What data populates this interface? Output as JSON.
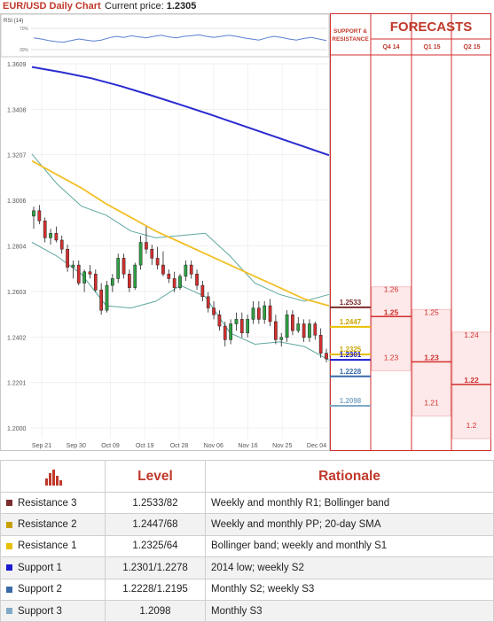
{
  "header": {
    "title": "EUR/USD Daily Chart",
    "price_label": "Current price:",
    "price_value": "1.2305"
  },
  "rsi_label": "RSI (14)",
  "rsi_ticks": [
    "70%",
    "30%"
  ],
  "forecasts": {
    "title": "FORECASTS",
    "sr_title": "SUPPORT &\nRESISTANCE",
    "quarters": [
      "Q4 14",
      "Q1 15",
      "Q2 15"
    ],
    "levels": [
      {
        "label": "1.2533",
        "value": 1.2533,
        "color": "#7b2c2c"
      },
      {
        "label": "1.2447",
        "value": 1.2447,
        "color": "#e8c000"
      },
      {
        "label": "1.2325",
        "value": 1.2325,
        "color": "#e8c000"
      },
      {
        "label": "1.2301",
        "value": 1.2301,
        "color": "#1a1ad0"
      },
      {
        "label": "1.2228",
        "value": 1.2228,
        "color": "#3a6aa8"
      },
      {
        "label": "1.2098",
        "value": 1.2098,
        "color": "#7fa9c7"
      }
    ],
    "q4": [
      {
        "label": "1.26",
        "value": 1.26,
        "bold": false
      },
      {
        "label": "1.25",
        "value": 1.25,
        "bold": true
      },
      {
        "label": "1.23",
        "value": 1.23,
        "bold": false
      }
    ],
    "q1": [
      {
        "label": "1.25",
        "value": 1.25,
        "bold": false
      },
      {
        "label": "1.23",
        "value": 1.23,
        "bold": true
      },
      {
        "label": "1.21",
        "value": 1.21,
        "bold": false
      }
    ],
    "q2": [
      {
        "label": "1.24",
        "value": 1.24,
        "bold": false
      },
      {
        "label": "1.22",
        "value": 1.22,
        "bold": true
      },
      {
        "label": "1.2",
        "value": 1.2,
        "bold": false
      }
    ]
  },
  "chart_data": {
    "type": "candlestick",
    "title": "EUR/USD Daily Chart",
    "y_ticks": [
      "1.3609",
      "1.3408",
      "1.3207",
      "1.3006",
      "1.2804",
      "1.2603",
      "1.2402",
      "1.2201",
      "1.2000"
    ],
    "ylim": [
      1.19,
      1.367
    ],
    "x_ticks": [
      "Sep 21",
      "Sep 30",
      "Oct 09",
      "Oct 19",
      "Oct 28",
      "Nov 06",
      "Nov 16",
      "Nov 25",
      "Dec 04"
    ],
    "candles": [
      [
        1.2936,
        1.2978,
        1.288,
        1.296
      ],
      [
        1.296,
        1.2985,
        1.29,
        1.2915
      ],
      [
        1.2915,
        1.293,
        1.282,
        1.284
      ],
      [
        1.284,
        1.288,
        1.281,
        1.286
      ],
      [
        1.286,
        1.289,
        1.282,
        1.283
      ],
      [
        1.283,
        1.285,
        1.277,
        1.279
      ],
      [
        1.279,
        1.281,
        1.269,
        1.271
      ],
      [
        1.271,
        1.274,
        1.266,
        1.272
      ],
      [
        1.272,
        1.274,
        1.263,
        1.264
      ],
      [
        1.264,
        1.27,
        1.26,
        1.269
      ],
      [
        1.269,
        1.272,
        1.266,
        1.268
      ],
      [
        1.268,
        1.27,
        1.26,
        1.261
      ],
      [
        1.261,
        1.264,
        1.25,
        1.252
      ],
      [
        1.252,
        1.265,
        1.251,
        1.263
      ],
      [
        1.263,
        1.268,
        1.26,
        1.266
      ],
      [
        1.266,
        1.277,
        1.264,
        1.275
      ],
      [
        1.275,
        1.277,
        1.266,
        1.268
      ],
      [
        1.268,
        1.27,
        1.26,
        1.262
      ],
      [
        1.262,
        1.273,
        1.261,
        1.272
      ],
      [
        1.272,
        1.285,
        1.27,
        1.282
      ],
      [
        1.282,
        1.289,
        1.277,
        1.279
      ],
      [
        1.279,
        1.281,
        1.272,
        1.275
      ],
      [
        1.275,
        1.28,
        1.27,
        1.272
      ],
      [
        1.272,
        1.278,
        1.267,
        1.268
      ],
      [
        1.268,
        1.27,
        1.264,
        1.266
      ],
      [
        1.266,
        1.269,
        1.26,
        1.262
      ],
      [
        1.262,
        1.268,
        1.261,
        1.267
      ],
      [
        1.267,
        1.274,
        1.265,
        1.272
      ],
      [
        1.272,
        1.274,
        1.266,
        1.268
      ],
      [
        1.268,
        1.27,
        1.261,
        1.263
      ],
      [
        1.263,
        1.265,
        1.256,
        1.258
      ],
      [
        1.258,
        1.26,
        1.251,
        1.253
      ],
      [
        1.253,
        1.256,
        1.248,
        1.25
      ],
      [
        1.25,
        1.252,
        1.243,
        1.245
      ],
      [
        1.245,
        1.247,
        1.236,
        1.239
      ],
      [
        1.239,
        1.248,
        1.237,
        1.246
      ],
      [
        1.246,
        1.251,
        1.243,
        1.248
      ],
      [
        1.248,
        1.251,
        1.24,
        1.242
      ],
      [
        1.242,
        1.25,
        1.24,
        1.248
      ],
      [
        1.248,
        1.256,
        1.246,
        1.253
      ],
      [
        1.253,
        1.256,
        1.246,
        1.248
      ],
      [
        1.248,
        1.256,
        1.246,
        1.254
      ],
      [
        1.254,
        1.257,
        1.245,
        1.247
      ],
      [
        1.247,
        1.25,
        1.237,
        1.239
      ],
      [
        1.239,
        1.242,
        1.236,
        1.24
      ],
      [
        1.24,
        1.252,
        1.238,
        1.25
      ],
      [
        1.25,
        1.252,
        1.241,
        1.243
      ],
      [
        1.243,
        1.249,
        1.242,
        1.246
      ],
      [
        1.246,
        1.248,
        1.238,
        1.24
      ],
      [
        1.24,
        1.248,
        1.238,
        1.246
      ],
      [
        1.246,
        1.247,
        1.239,
        1.241
      ],
      [
        1.241,
        1.244,
        1.231,
        1.233
      ],
      [
        1.233,
        1.235,
        1.229,
        1.2305
      ]
    ],
    "sma200": [
      1.3595,
      1.3572,
      1.3545,
      1.351,
      1.347,
      1.3428,
      1.3385,
      1.334,
      1.3295,
      1.325,
      1.3205
    ],
    "sma20": [
      1.318,
      1.312,
      1.306,
      1.299,
      1.293,
      1.287,
      1.282,
      1.277,
      1.272,
      1.267,
      1.262,
      1.257,
      1.254
    ],
    "bb_upper": [
      1.321,
      1.308,
      1.298,
      1.294,
      1.287,
      1.284,
      1.285,
      1.286,
      1.276,
      1.264,
      1.259,
      1.256,
      1.259
    ],
    "bb_lower": [
      1.282,
      1.276,
      1.268,
      1.254,
      1.253,
      1.256,
      1.263,
      1.258,
      1.242,
      1.237,
      1.238,
      1.236,
      1.23
    ],
    "rsi": [
      52,
      50,
      47,
      45,
      44,
      47,
      50,
      48,
      46,
      48,
      52,
      55,
      53,
      56,
      54,
      52,
      55,
      57,
      54,
      52,
      55,
      56,
      58,
      55,
      53,
      55,
      57,
      55,
      52,
      50,
      48,
      52,
      55,
      53,
      50,
      48,
      51,
      53,
      50,
      47
    ]
  },
  "table": {
    "headers": [
      "",
      "Level",
      "Rationale"
    ],
    "rows": [
      {
        "name": "Resistance 3",
        "level": "1.2533/82",
        "rationale": "Weekly and monthly R1; Bollinger band",
        "color": "#7b2c2c"
      },
      {
        "name": "Resistance 2",
        "level": "1.2447/68",
        "rationale": "Weekly and monthly PP; 20-day SMA",
        "color": "#c8a000"
      },
      {
        "name": "Resistance 1",
        "level": "1.2325/64",
        "rationale": "Bollinger band; weekly and monthly S1",
        "color": "#e8c000"
      },
      {
        "name": "Support 1",
        "level": "1.2301/1.2278",
        "rationale": "2014 low; weekly S2",
        "color": "#1a1ad0"
      },
      {
        "name": "Support 2",
        "level": "1.2228/1.2195",
        "rationale": "Monthly S2; weekly S3",
        "color": "#3a6aa8"
      },
      {
        "name": "Support 3",
        "level": "1.2098",
        "rationale": "Monthly S3",
        "color": "#7fa9c7"
      }
    ]
  }
}
